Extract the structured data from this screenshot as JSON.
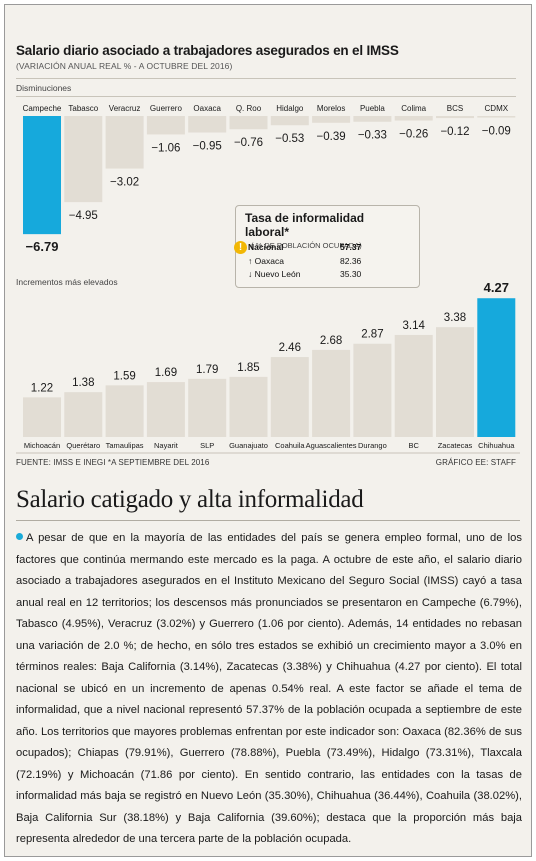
{
  "chart_data": {
    "type": "bar",
    "title": "Salario diario asociado a trabajadores asegurados en el IMSS",
    "subtitle": "(VARIACIÓN ANUAL REAL % - A OCTUBRE DEL 2016)",
    "highlight_color": "#16a9dc",
    "bar_color": "#e2ddd4",
    "panels": [
      {
        "name": "Disminuciones",
        "categories": [
          "Campeche",
          "Tabasco",
          "Veracruz",
          "Guerrero",
          "Oaxaca",
          "Q. Roo",
          "Hidalgo",
          "Morelos",
          "Puebla",
          "Colima",
          "BCS",
          "CDMX"
        ],
        "values": [
          -6.79,
          -4.95,
          -3.02,
          -1.06,
          -0.95,
          -0.76,
          -0.53,
          -0.39,
          -0.33,
          -0.26,
          -0.12,
          -0.09
        ],
        "labels": [
          "-6.79",
          "-4.95",
          "-3.02",
          "-1.06",
          "-0.95",
          "-0.76",
          "-0.53",
          "-0.39",
          "-0.33",
          "-0.26",
          "-0.12",
          "-0.09"
        ],
        "highlight": "Campeche"
      },
      {
        "name": "Incrementos más elevados",
        "categories": [
          "Michoacán",
          "Querétaro",
          "Tamaulipas",
          "Nayarit",
          "SLP",
          "Guanajuato",
          "Coahuila",
          "Aguascalientes",
          "Durango",
          "BC",
          "Zacatecas",
          "Chihuahua"
        ],
        "values": [
          1.22,
          1.38,
          1.59,
          1.69,
          1.79,
          1.85,
          2.46,
          2.68,
          2.87,
          3.14,
          3.38,
          4.27
        ],
        "labels": [
          "1.22",
          "1.38",
          "1.59",
          "1.69",
          "1.79",
          "1.85",
          "2.46",
          "2.68",
          "2.87",
          "3.14",
          "3.38",
          "4.27"
        ],
        "highlight": "Chihuahua"
      }
    ]
  },
  "info_box": {
    "title": "Tasa de informalidad laboral*",
    "subtitle": "( % DE POBLACIÓN OCUPADA)",
    "icon": "warning-icon",
    "rows": [
      {
        "label": "Nacional",
        "value": "57.37",
        "bold": true
      },
      {
        "label": "Oaxaca",
        "value": "82.36",
        "arrow": "↑"
      },
      {
        "label": "Nuevo León",
        "value": "35.30",
        "arrow": "↓"
      }
    ]
  },
  "footer": {
    "source": "FUENTE: IMSS E INEGI  *A SEPTIEMBRE DEL 2016",
    "credit": "GRÁFICO EE: STAFF"
  },
  "article": {
    "title": "Salario catigado y alta informalidad",
    "body": "A pesar de que en la mayoría de las entidades del país se genera empleo formal, uno de los factores que continúa mermando este mercado es la paga. A octubre de este año, el salario diario asociado a trabajadores asegurados en el Instituto Mexicano del Seguro Social (IMSS) cayó a tasa anual real en 12 territorios; los descensos más pronunciados se presentaron en Campeche (6.79%), Tabasco (4.95%), Veracruz (3.02%) y Guerrero (1.06 por ciento). Además, 14 entidades no rebasan una variación de 2.0 %; de hecho, en sólo tres estados se exhibió un crecimiento mayor a 3.0% en términos reales: Baja California (3.14%), Zacatecas (3.38%) y Chihuahua (4.27 por ciento). El total nacional se ubicó en un incremento de apenas 0.54% real.  A este factor se añade el tema de informalidad, que a nivel nacional representó 57.37% de la población ocupada a septiembre de este año. Los territorios que mayores problemas enfrentan por este indicador son: Oaxaca (82.36% de sus ocupados); Chiapas (79.91%), Guerrero (78.88%), Puebla (73.49%), Hidalgo (73.31%), Tlaxcala (72.19%) y Michoacán (71.86 por ciento). En sentido contrario, las entidades con la tasas de informalidad más baja se registró en Nuevo León (35.30%), Chihuahua (36.44%), Coahuila (38.02%), Baja California Sur (38.18%) y Baja California (39.60%); destaca que la proporción más baja representa alrededor de una tercera parte de la población ocupada."
  }
}
